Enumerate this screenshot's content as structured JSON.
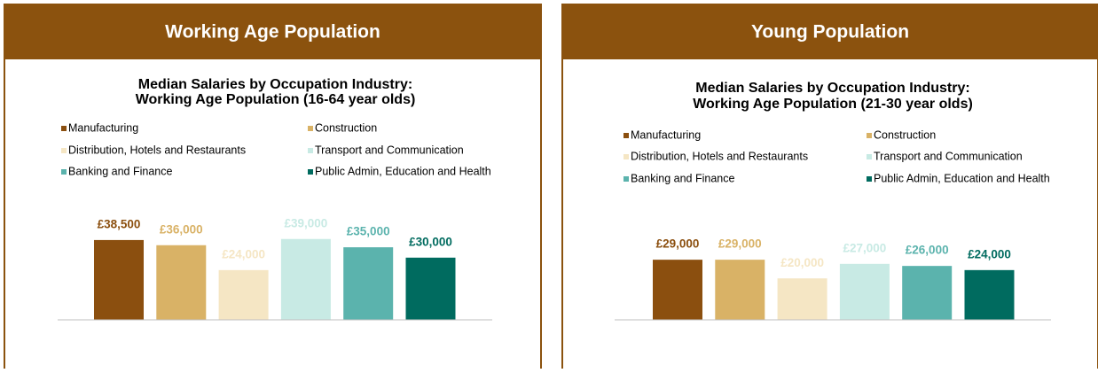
{
  "chart_data": [
    {
      "type": "bar",
      "header": "Working Age Population",
      "title": [
        "Median Salaries by Occupation Industry:",
        "Working Age Population (16-64 year olds)"
      ],
      "categories": [
        "Manufacturing",
        "Construction",
        "Distribution, Hotels and Restaurants",
        "Transport and Communication",
        "Banking and Finance",
        "Public Admin, Education and Health"
      ],
      "colors": [
        "#8b4f0f",
        "#d9b266",
        "#f5e6c4",
        "#c8eae4",
        "#5bb3ad",
        "#006b5f"
      ],
      "values": [
        38500,
        36000,
        24000,
        39000,
        35000,
        30000
      ],
      "value_labels": [
        "£38,500",
        "£36,000",
        "£24,000",
        "£39,000",
        "£35,000",
        "£30,000"
      ],
      "ylim": [
        0,
        50000
      ]
    },
    {
      "type": "bar",
      "header": "Young Population",
      "title": [
        "Median Salaries by Occupation Industry:",
        "Working Age Population (21-30 year olds)"
      ],
      "categories": [
        "Manufacturing",
        "Construction",
        "Distribution, Hotels and Restaurants",
        "Transport and Communication",
        "Banking and Finance",
        "Public Admin, Education and Health"
      ],
      "colors": [
        "#8b4f0f",
        "#d9b266",
        "#f5e6c4",
        "#c8eae4",
        "#5bb3ad",
        "#006b5f"
      ],
      "values": [
        29000,
        29000,
        20000,
        27000,
        26000,
        24000
      ],
      "value_labels": [
        "£29,000",
        "£29,000",
        "£20,000",
        "£27,000",
        "£26,000",
        "£24,000"
      ],
      "ylim": [
        0,
        50000
      ]
    }
  ]
}
